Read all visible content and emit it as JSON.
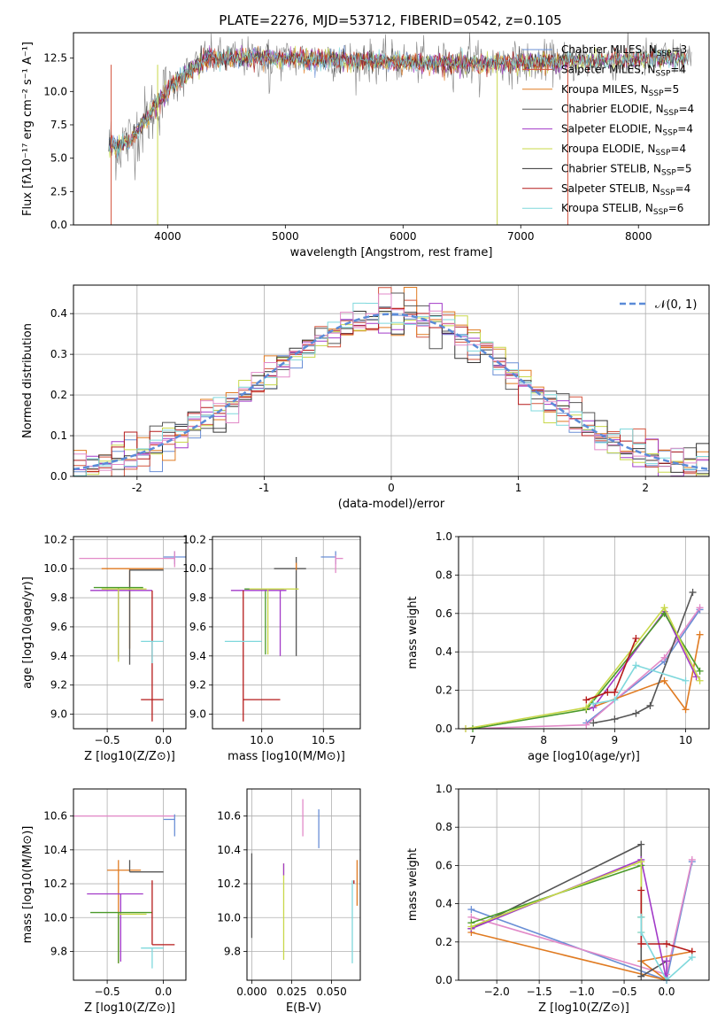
{
  "figure": {
    "title": "PLATE=2276, MJD=53712, FIBERID=0542, z=0.105"
  },
  "chart_data": [
    {
      "id": "spectrum",
      "type": "line",
      "xlabel": "wavelength [Angstrom, rest frame]",
      "ylabel": "Flux [fλ10⁻¹⁷ erg cm⁻² s⁻¹ A⁻¹]",
      "xlim": [
        3200,
        8600
      ],
      "ylim": [
        0,
        14.4
      ],
      "xticks": [
        4000,
        5000,
        6000,
        7000,
        8000
      ],
      "yticks": [
        0.0,
        2.5,
        5.0,
        7.5,
        10.0,
        12.5
      ],
      "legend_position": "right",
      "legend": [
        {
          "label": "Chabrier MILES, N",
          "sub": "SSP",
          "eq": "=3",
          "color": "#6a8fd6"
        },
        {
          "label": "Salpeter MILES, N",
          "sub": "SSP",
          "eq": "=4",
          "color": "#d4553f"
        },
        {
          "label": "Kroupa MILES, N",
          "sub": "SSP",
          "eq": "=5",
          "color": "#e07b22"
        },
        {
          "label": "Chabrier ELODIE, N",
          "sub": "SSP",
          "eq": "=4",
          "color": "#555555"
        },
        {
          "label": "Salpeter ELODIE, N",
          "sub": "SSP",
          "eq": "=4",
          "color": "#a23ac8"
        },
        {
          "label": "Kroupa ELODIE, N",
          "sub": "SSP",
          "eq": "=4",
          "color": "#c8d84a"
        },
        {
          "label": "Chabrier STELIB, N",
          "sub": "SSP",
          "eq": "=5",
          "color": "#333333"
        },
        {
          "label": "Salpeter STELIB, N",
          "sub": "SSP",
          "eq": "=4",
          "color": "#b51a1a"
        },
        {
          "label": "Kroupa STELIB, N",
          "sub": "SSP",
          "eq": "=6",
          "color": "#7fd8dc"
        }
      ],
      "series_note": "noisy galaxy spectra; overall flux ~6 at 3600 A rising to ~12.4 above 4300 A"
    },
    {
      "id": "residuals",
      "type": "line",
      "xlabel": "(data-model)/error",
      "ylabel": "Normed distribution",
      "xlim": [
        -2.5,
        2.5
      ],
      "ylim": [
        0,
        0.47
      ],
      "xticks": [
        -2,
        -1,
        0,
        1,
        2
      ],
      "yticks": [
        0.0,
        0.1,
        0.2,
        0.3,
        0.4
      ],
      "grid": true,
      "legend_position": "top-right",
      "legend": [
        {
          "label": "𝒩(0, 1)",
          "color": "#5b8bd8",
          "style": "dashed"
        }
      ]
    },
    {
      "id": "age-vs-Z",
      "type": "scatter",
      "xlabel": "Z [log10(Z/Z⊙)]",
      "ylabel": "age  [log10(age/yr)]",
      "xlim": [
        -0.8,
        0.2
      ],
      "ylim": [
        8.9,
        10.22
      ],
      "xticks": [
        -0.5,
        0.0
      ],
      "xtick_labels": [
        "−0.5",
        "0.0"
      ],
      "yticks": [
        9.0,
        9.2,
        9.4,
        9.6,
        9.8,
        10.0,
        10.2
      ],
      "ytick_labels": [
        "9.0",
        "9.2",
        "9.4",
        "9.6",
        "9.8",
        "10.0",
        "10.2"
      ],
      "grid": true,
      "points": [
        {
          "x": 0.1,
          "y": 10.08,
          "xe": [
            0.1,
            0.1
          ],
          "ye": [
            0.05,
            0.04
          ],
          "color": "#6a8fd6"
        },
        {
          "x": 0.1,
          "y": 10.07,
          "xe": [
            0.85,
            0.0
          ],
          "ye": [
            0.06,
            0.05
          ],
          "color": "#e28ac8"
        },
        {
          "x": -0.3,
          "y": 10.0,
          "xe": [
            0.25,
            0.3
          ],
          "ye": [
            0.55,
            0.0
          ],
          "color": "#e07b22"
        },
        {
          "x": -0.3,
          "y": 9.99,
          "xe": [
            0.0,
            0.3
          ],
          "ye": [
            0.65,
            0.0
          ],
          "color": "#555555"
        },
        {
          "x": -0.4,
          "y": 9.87,
          "xe": [
            0.22,
            0.22
          ],
          "ye": [
            0.47,
            0.0
          ],
          "color": "#4a9a2a"
        },
        {
          "x": -0.4,
          "y": 9.85,
          "xe": [
            0.25,
            0.3
          ],
          "ye": [
            0.47,
            0.0
          ],
          "color": "#a23ac8"
        },
        {
          "x": -0.4,
          "y": 9.86,
          "xe": [
            0.15,
            0.25
          ],
          "ye": [
            0.5,
            0.0
          ],
          "color": "#c8d84a"
        },
        {
          "x": -0.1,
          "y": 9.85,
          "xe": [
            0.0,
            0.0
          ],
          "ye": [
            0.9,
            0.0
          ],
          "color": "#b51a1a"
        },
        {
          "x": -0.1,
          "y": 9.1,
          "xe": [
            0.1,
            0.1
          ],
          "ye": [
            0.0,
            0.0
          ],
          "color": "#b51a1a"
        },
        {
          "x": -0.1,
          "y": 9.5,
          "xe": [
            0.1,
            0.1
          ],
          "ye": [
            0.15,
            0.0
          ],
          "color": "#7fd8dc"
        }
      ]
    },
    {
      "id": "age-vs-mass",
      "type": "scatter",
      "xlabel": "mass [log10(M/M⊙)]",
      "xlim": [
        9.6,
        10.8
      ],
      "ylim": [
        8.9,
        10.22
      ],
      "xticks": [
        10.0,
        10.5
      ],
      "xtick_labels": [
        "10.0",
        "10.5"
      ],
      "yticks": [
        9.0,
        9.2,
        9.4,
        9.6,
        9.8,
        10.0,
        10.2
      ],
      "ytick_labels": [
        "9.0",
        "9.2",
        "9.4",
        "9.6",
        "9.8",
        "10.0",
        "10.2"
      ],
      "grid": true,
      "points": [
        {
          "x": 10.6,
          "y": 10.08,
          "xe": [
            0.12,
            0.0
          ],
          "ye": [
            0.05,
            0.04
          ],
          "color": "#6a8fd6"
        },
        {
          "x": 10.6,
          "y": 10.07,
          "xe": [
            0.0,
            0.06
          ],
          "ye": [
            0.1,
            0.02
          ],
          "color": "#e28ac8"
        },
        {
          "x": 10.28,
          "y": 10.0,
          "xe": [
            0.18,
            0.08
          ],
          "ye": [
            0.6,
            0.08
          ],
          "color": "#555555"
        },
        {
          "x": 10.28,
          "y": 9.99,
          "xe": [
            0.0,
            0.0
          ],
          "ye": [
            0.0,
            0.05
          ],
          "color": "#e07b22"
        },
        {
          "x": 10.03,
          "y": 9.86,
          "xe": [
            0.17,
            0.15
          ],
          "ye": [
            0.45,
            0.0
          ],
          "color": "#4a9a2a"
        },
        {
          "x": 10.15,
          "y": 9.85,
          "xe": [
            0.4,
            0.05
          ],
          "ye": [
            0.45,
            0.0
          ],
          "color": "#a23ac8"
        },
        {
          "x": 10.05,
          "y": 9.86,
          "xe": [
            0.15,
            0.25
          ],
          "ye": [
            0.45,
            0.0
          ],
          "color": "#c8d84a"
        },
        {
          "x": 9.85,
          "y": 9.85,
          "xe": [
            0.0,
            0.0
          ],
          "ye": [
            0.9,
            0.0
          ],
          "color": "#b51a1a"
        },
        {
          "x": 9.85,
          "y": 9.1,
          "xe": [
            0.0,
            0.3
          ],
          "ye": [
            0.0,
            0.0
          ],
          "color": "#b51a1a"
        },
        {
          "x": 9.85,
          "y": 9.5,
          "xe": [
            0.15,
            0.15
          ],
          "ye": [
            0.0,
            0.0
          ],
          "color": "#7fd8dc"
        }
      ]
    },
    {
      "id": "massweight-vs-age",
      "type": "line",
      "xlabel": "age  [log10(age/yr)]",
      "ylabel": "mass weight",
      "xlim": [
        6.8,
        10.33
      ],
      "ylim": [
        0,
        1
      ],
      "xticks": [
        7,
        8,
        9,
        10
      ],
      "yticks": [
        0.0,
        0.2,
        0.4,
        0.6,
        0.8,
        1.0
      ],
      "grid": true,
      "series": [
        {
          "color": "#6a8fd6",
          "x": [
            8.6,
            9.7,
            10.2
          ],
          "y": [
            0.03,
            0.35,
            0.62
          ]
        },
        {
          "color": "#e28ac8",
          "x": [
            6.9,
            8.6,
            9.7,
            10.2
          ],
          "y": [
            0.0,
            0.02,
            0.37,
            0.63
          ]
        },
        {
          "color": "#e07b22",
          "x": [
            8.6,
            9.7,
            10.0,
            10.2
          ],
          "y": [
            0.1,
            0.25,
            0.1,
            0.49
          ]
        },
        {
          "color": "#555555",
          "x": [
            8.7,
            9.0,
            9.3,
            9.5,
            10.1
          ],
          "y": [
            0.03,
            0.05,
            0.08,
            0.12,
            0.71
          ]
        },
        {
          "color": "#a23ac8",
          "x": [
            8.6,
            8.7,
            9.7,
            10.15
          ],
          "y": [
            0.1,
            0.11,
            0.61,
            0.27
          ]
        },
        {
          "color": "#4a9a2a",
          "x": [
            7.0,
            8.6,
            9.7,
            10.2
          ],
          "y": [
            0.0,
            0.1,
            0.6,
            0.3
          ]
        },
        {
          "color": "#c8d84a",
          "x": [
            6.9,
            8.6,
            9.7,
            10.2
          ],
          "y": [
            0.0,
            0.11,
            0.63,
            0.25
          ]
        },
        {
          "color": "#b51a1a",
          "x": [
            8.6,
            8.9,
            9.0,
            9.3
          ],
          "y": [
            0.15,
            0.19,
            0.19,
            0.47
          ]
        },
        {
          "color": "#7fd8dc",
          "x": [
            8.7,
            9.0,
            9.3,
            10.0
          ],
          "y": [
            0.13,
            0.15,
            0.33,
            0.25
          ]
        }
      ]
    },
    {
      "id": "mass-vs-Z",
      "type": "scatter",
      "xlabel": "Z [log10(Z/Z⊙)]",
      "ylabel": "mass [log10(M/M⊙)]",
      "xlim": [
        -0.8,
        0.2
      ],
      "ylim": [
        9.63,
        10.76
      ],
      "xticks": [
        -0.5,
        0.0
      ],
      "xtick_labels": [
        "−0.5",
        "0.0"
      ],
      "yticks": [
        9.8,
        10.0,
        10.2,
        10.4,
        10.6
      ],
      "ytick_labels": [
        "9.8",
        "10.0",
        "10.2",
        "10.4",
        "10.6"
      ],
      "grid": true,
      "points": [
        {
          "x": 0.1,
          "y": 10.6,
          "xe": [
            0.9,
            0.0
          ],
          "ye": [
            0.0,
            0.0
          ],
          "color": "#e28ac8"
        },
        {
          "x": 0.1,
          "y": 10.58,
          "xe": [
            0.1,
            0.0
          ],
          "ye": [
            0.1,
            0.03
          ],
          "color": "#6a8fd6"
        },
        {
          "x": -0.4,
          "y": 10.28,
          "xe": [
            0.1,
            0.2
          ],
          "ye": [
            0.55,
            0.06
          ],
          "color": "#e07b22"
        },
        {
          "x": -0.3,
          "y": 10.27,
          "xe": [
            0.0,
            0.3
          ],
          "ye": [
            0.0,
            0.07
          ],
          "color": "#555555"
        },
        {
          "x": -0.38,
          "y": 10.14,
          "xe": [
            0.3,
            0.2
          ],
          "ye": [
            0.4,
            0.0
          ],
          "color": "#a23ac8"
        },
        {
          "x": -0.4,
          "y": 10.03,
          "xe": [
            0.25,
            0.3
          ],
          "ye": [
            0.3,
            0.0
          ],
          "color": "#4a9a2a"
        },
        {
          "x": -0.4,
          "y": 10.02,
          "xe": [
            0.0,
            0.25
          ],
          "ye": [
            0.0,
            0.0
          ],
          "color": "#c8d84a"
        },
        {
          "x": -0.1,
          "y": 9.84,
          "xe": [
            0.0,
            0.2
          ],
          "ye": [
            0.0,
            0.38
          ],
          "color": "#b51a1a"
        },
        {
          "x": -0.1,
          "y": 9.82,
          "xe": [
            0.1,
            0.1
          ],
          "ye": [
            0.12,
            0.0
          ],
          "color": "#7fd8dc"
        }
      ]
    },
    {
      "id": "mass-vs-EBV",
      "type": "scatter",
      "xlabel": "E(B-V)",
      "xlim": [
        -0.003,
        0.068
      ],
      "ylim": [
        9.63,
        10.76
      ],
      "xticks": [
        0.0,
        0.025,
        0.05
      ],
      "xtick_labels": [
        "0.000",
        "0.025",
        "0.050"
      ],
      "yticks": [
        9.8,
        10.0,
        10.2,
        10.4,
        10.6
      ],
      "ytick_labels": [
        "9.8",
        "10.0",
        "10.2",
        "10.4",
        "10.6"
      ],
      "grid": true,
      "points": [
        {
          "x": 0.0,
          "y": 10.0,
          "xe": [
            0,
            0
          ],
          "ye": [
            0.12,
            0.38
          ],
          "color": "#555555"
        },
        {
          "x": 0.0,
          "y": 9.95,
          "xe": [
            0,
            0
          ],
          "ye": [
            0.0,
            0.0
          ],
          "color": "#333333"
        },
        {
          "x": 0.02,
          "y": 10.2,
          "xe": [
            0,
            0
          ],
          "ye": [
            0.45,
            0.12
          ],
          "color": "#c8d84a"
        },
        {
          "x": 0.02,
          "y": 10.25,
          "xe": [
            0,
            0
          ],
          "ye": [
            0.0,
            0.07
          ],
          "color": "#a23ac8"
        },
        {
          "x": 0.032,
          "y": 10.6,
          "xe": [
            0,
            0
          ],
          "ye": [
            0.12,
            0.1
          ],
          "color": "#e28ac8"
        },
        {
          "x": 0.042,
          "y": 10.55,
          "xe": [
            0,
            0
          ],
          "ye": [
            0.14,
            0.09
          ],
          "color": "#6a8fd6"
        },
        {
          "x": 0.063,
          "y": 10.1,
          "xe": [
            0,
            0
          ],
          "ye": [
            0.37,
            0.12
          ],
          "color": "#7fd8dc"
        },
        {
          "x": 0.064,
          "y": 10.2,
          "xe": [
            0,
            0
          ],
          "ye": [
            0.0,
            0.02
          ],
          "color": "#b51a1a"
        },
        {
          "x": 0.066,
          "y": 10.2,
          "xe": [
            0,
            0
          ],
          "ye": [
            0.13,
            0.14
          ],
          "color": "#e07b22"
        }
      ]
    },
    {
      "id": "massweight-vs-Z",
      "type": "line",
      "xlabel": "Z [log10(Z/Z⊙)]",
      "ylabel": "mass weight",
      "xlim": [
        -2.45,
        0.5
      ],
      "ylim": [
        0,
        1
      ],
      "xticks": [
        -2.0,
        -1.5,
        -1.0,
        -0.5,
        0.0
      ],
      "xtick_labels": [
        "−2.0",
        "−1.5",
        "−1.0",
        "−0.5",
        "0.0"
      ],
      "yticks": [
        0.0,
        0.2,
        0.4,
        0.6,
        0.8,
        1.0
      ],
      "grid": true,
      "series": [
        {
          "color": "#6a8fd6",
          "x": [
            -2.3,
            0.0,
            0.3
          ],
          "y": [
            0.37,
            0.0,
            0.62
          ]
        },
        {
          "color": "#e28ac8",
          "x": [
            -2.3,
            0.0,
            0.3
          ],
          "y": [
            0.33,
            0.03,
            0.63
          ]
        },
        {
          "color": "#e07b22",
          "x": [
            -2.3,
            0.0,
            -0.3,
            0.3
          ],
          "y": [
            0.25,
            0.0,
            0.1,
            0.15
          ]
        },
        {
          "color": "#555555",
          "x": [
            -2.3,
            -0.3,
            -0.3,
            0.0
          ],
          "y": [
            0.27,
            0.71,
            0.02,
            0.1
          ]
        },
        {
          "color": "#a23ac8",
          "x": [
            -2.3,
            -0.3,
            0.0,
            0.0
          ],
          "y": [
            0.27,
            0.63,
            0.0,
            0.1
          ]
        },
        {
          "color": "#4a9a2a",
          "x": [
            -2.3,
            -0.3,
            -0.3
          ],
          "y": [
            0.3,
            0.6,
            0.33
          ]
        },
        {
          "color": "#c8d84a",
          "x": [
            -2.3,
            -0.3,
            -0.3
          ],
          "y": [
            0.28,
            0.62,
            0.25
          ]
        },
        {
          "color": "#b51a1a",
          "x": [
            -0.3,
            -0.3,
            0.0,
            0.3
          ],
          "y": [
            0.47,
            0.19,
            0.19,
            0.15
          ]
        },
        {
          "color": "#7fd8dc",
          "x": [
            -0.3,
            -0.3,
            0.0,
            0.3
          ],
          "y": [
            0.33,
            0.25,
            0.0,
            0.12
          ]
        }
      ]
    }
  ]
}
